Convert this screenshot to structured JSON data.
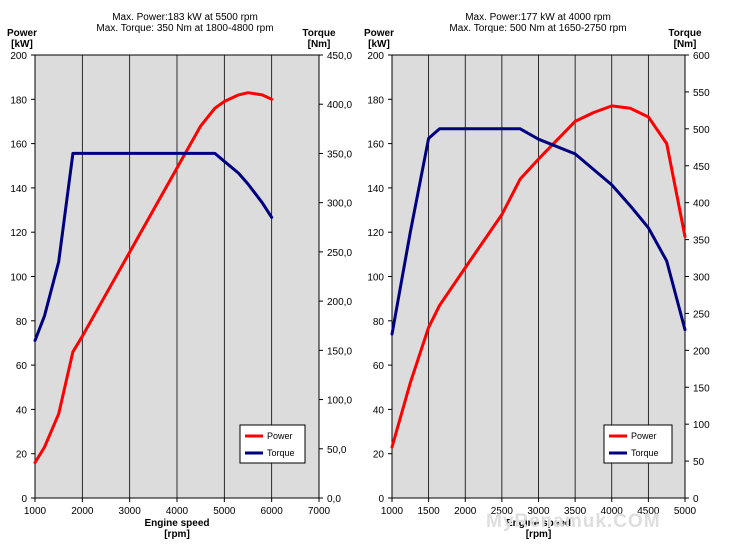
{
  "watermark": "MyRenamuk.COM",
  "chart_data": [
    {
      "type": "line",
      "title": [
        "Max. Power:183 kW at 5500 rpm",
        "Max. Torque: 350 Nm at 1800-4800 rpm"
      ],
      "xlabel": [
        "Engine speed",
        "[rpm]"
      ],
      "ylabel_left": [
        "Power",
        "[kW]"
      ],
      "ylabel_right": [
        "Torque",
        "[Nm]"
      ],
      "xlim": [
        1000,
        7000
      ],
      "x_ticks": [
        1000,
        2000,
        3000,
        4000,
        5000,
        6000,
        7000
      ],
      "x_tick_labels": [
        "1000",
        "2000",
        "3000",
        "4000",
        "5000",
        "6000",
        "7000"
      ],
      "ylim_left": [
        0,
        200
      ],
      "y_ticks_left": [
        0,
        20,
        40,
        60,
        80,
        100,
        120,
        140,
        160,
        180,
        200
      ],
      "y_tick_labels_left": [
        "0",
        "20",
        "40",
        "60",
        "80",
        "100",
        "120",
        "140",
        "160",
        "180",
        "200"
      ],
      "ylim_right": [
        0,
        450
      ],
      "y_ticks_right": [
        0,
        50,
        100,
        150,
        200,
        250,
        300,
        350,
        400,
        450
      ],
      "y_tick_labels_right": [
        "0,0",
        "50,0",
        "100,0",
        "150,0",
        "200,0",
        "250,0",
        "300,0",
        "350,0",
        "400,0",
        "450,0"
      ],
      "grid": "vertical",
      "legend": "bottom-right",
      "background": "#dcdcdc",
      "series": [
        {
          "name": "Power",
          "axis": "left",
          "color": "#ff0000",
          "points": [
            [
              1000,
              16
            ],
            [
              1200,
              23
            ],
            [
              1500,
              38
            ],
            [
              1800,
              66
            ],
            [
              2000,
              73
            ],
            [
              2500,
              92
            ],
            [
              3000,
              111
            ],
            [
              3500,
              130
            ],
            [
              4000,
              149
            ],
            [
              4500,
              168
            ],
            [
              4800,
              176
            ],
            [
              5000,
              179
            ],
            [
              5300,
              182
            ],
            [
              5500,
              183
            ],
            [
              5800,
              182
            ],
            [
              6000,
              180
            ]
          ]
        },
        {
          "name": "Torque",
          "axis": "right",
          "color": "#000080",
          "points": [
            [
              1000,
              160
            ],
            [
              1200,
              185
            ],
            [
              1500,
              240
            ],
            [
              1800,
              350
            ],
            [
              2000,
              350
            ],
            [
              3000,
              350
            ],
            [
              4000,
              350
            ],
            [
              4800,
              350
            ],
            [
              5000,
              342
            ],
            [
              5300,
              330
            ],
            [
              5500,
              319
            ],
            [
              5800,
              300
            ],
            [
              6000,
              285
            ]
          ]
        }
      ]
    },
    {
      "type": "line",
      "title": [
        "Max. Power:177 kW at 4000 rpm",
        "Max. Torque: 500 Nm at 1650-2750 rpm"
      ],
      "xlabel": [
        "Engine speed",
        "[rpm]"
      ],
      "ylabel_left": [
        "Power",
        "[kW]"
      ],
      "ylabel_right": [
        "Torque",
        "[Nm]"
      ],
      "xlim": [
        1000,
        5000
      ],
      "x_ticks": [
        1000,
        1500,
        2000,
        2500,
        3000,
        3500,
        4000,
        4500,
        5000
      ],
      "x_tick_labels": [
        "1000",
        "1500",
        "2000",
        "2500",
        "3000",
        "3500",
        "4000",
        "4500",
        "5000"
      ],
      "ylim_left": [
        0,
        200
      ],
      "y_ticks_left": [
        0,
        20,
        40,
        60,
        80,
        100,
        120,
        140,
        160,
        180,
        200
      ],
      "y_tick_labels_left": [
        "0",
        "20",
        "40",
        "60",
        "80",
        "100",
        "120",
        "140",
        "160",
        "180",
        "200"
      ],
      "ylim_right": [
        0,
        600
      ],
      "y_ticks_right": [
        0,
        50,
        100,
        150,
        200,
        250,
        300,
        350,
        400,
        450,
        500,
        550,
        600
      ],
      "y_tick_labels_right": [
        "0",
        "50",
        "100",
        "150",
        "200",
        "250",
        "300",
        "350",
        "400",
        "450",
        "500",
        "550",
        "600"
      ],
      "grid": "vertical",
      "legend": "bottom-right",
      "background": "#dcdcdc",
      "series": [
        {
          "name": "Power",
          "axis": "left",
          "color": "#ff0000",
          "points": [
            [
              1000,
              23
            ],
            [
              1250,
              52
            ],
            [
              1500,
              77
            ],
            [
              1650,
              87
            ],
            [
              2000,
              104
            ],
            [
              2500,
              128
            ],
            [
              2750,
              144
            ],
            [
              3000,
              153
            ],
            [
              3500,
              170
            ],
            [
              3750,
              174
            ],
            [
              4000,
              177
            ],
            [
              4250,
              176
            ],
            [
              4500,
              172
            ],
            [
              4750,
              160
            ],
            [
              5000,
              118
            ]
          ]
        },
        {
          "name": "Torque",
          "axis": "right",
          "color": "#000080",
          "points": [
            [
              1000,
              222
            ],
            [
              1250,
              360
            ],
            [
              1500,
              487
            ],
            [
              1650,
              500
            ],
            [
              2000,
              500
            ],
            [
              2500,
              500
            ],
            [
              2750,
              500
            ],
            [
              3000,
              486
            ],
            [
              3500,
              466
            ],
            [
              4000,
              424
            ],
            [
              4250,
              396
            ],
            [
              4500,
              366
            ],
            [
              4750,
              321
            ],
            [
              5000,
              228
            ]
          ]
        }
      ]
    }
  ]
}
